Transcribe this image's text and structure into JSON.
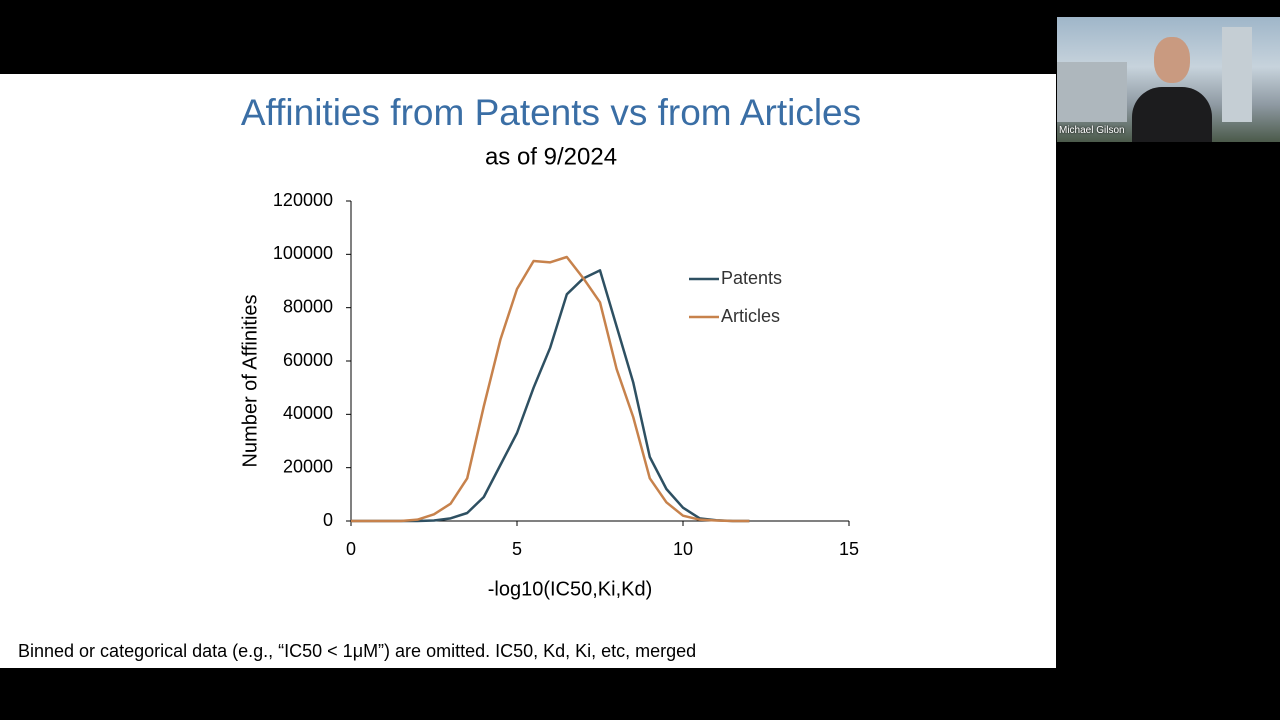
{
  "chart_data": {
    "type": "line",
    "title": "Affinities from Patents vs from Articles",
    "subtitle": "as of 9/2024",
    "x_label": "-log10(IC50,Ki,Kd)",
    "y_label": "Number of Affinities",
    "x": [
      0,
      0.5,
      1,
      1.5,
      2,
      2.5,
      3,
      3.5,
      4,
      4.5,
      5,
      5.5,
      6,
      6.5,
      7,
      7.5,
      8,
      8.5,
      9,
      9.5,
      10,
      10.5,
      11,
      11.5,
      12
    ],
    "series": [
      {
        "name": "Patents",
        "color": "#2e5062",
        "values": [
          0,
          0,
          0,
          0,
          0,
          200,
          1000,
          3000,
          9000,
          21000,
          33000,
          50000,
          65000,
          85000,
          91000,
          94000,
          73000,
          52000,
          24000,
          12000,
          5000,
          1000,
          300,
          0,
          0
        ]
      },
      {
        "name": "Articles",
        "color": "#c7824c",
        "values": [
          0,
          0,
          0,
          0,
          500,
          2500,
          6500,
          16000,
          43000,
          68000,
          87000,
          97500,
          97000,
          99000,
          91000,
          82000,
          57000,
          39000,
          16000,
          7000,
          2000,
          500,
          200,
          0,
          0
        ]
      }
    ],
    "xlim": [
      0,
      15
    ],
    "xticks": [
      0,
      5,
      10,
      15
    ],
    "ylim": [
      0,
      120000
    ],
    "yticks": [
      0,
      20000,
      40000,
      60000,
      80000,
      100000,
      120000
    ],
    "grid": false,
    "legend": "upper right"
  },
  "footnote": "Binned or categorical data (e.g., “IC50 < 1μM”) are omitted. IC50, Kd, Ki, etc, merged",
  "participant": {
    "name": "Michael Gilson"
  }
}
